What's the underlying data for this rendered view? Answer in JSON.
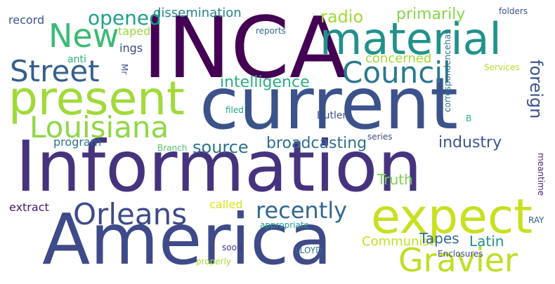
{
  "words": [
    {
      "text": "INCA",
      "color": "#440154"
    },
    {
      "text": "current",
      "color": "#3b528b"
    },
    {
      "text": "Information",
      "color": "#46337e"
    },
    {
      "text": "America",
      "color": "#3e4a89"
    },
    {
      "text": "material",
      "color": "#21918c"
    },
    {
      "text": "present",
      "color": "#a0da39"
    },
    {
      "text": "expect",
      "color": "#c8e020"
    },
    {
      "text": "Council",
      "color": "#2a788e"
    },
    {
      "text": "Street",
      "color": "#355f8d"
    },
    {
      "text": "New",
      "color": "#3bbb75"
    },
    {
      "text": "Louisiana",
      "color": "#90d743"
    },
    {
      "text": "Orleans",
      "color": "#3e4a89"
    },
    {
      "text": "Gravier",
      "color": "#bddf26"
    },
    {
      "text": "recently",
      "color": "#31688e"
    },
    {
      "text": "opened",
      "color": "#1fa187"
    },
    {
      "text": "foreign",
      "color": "#3b528b"
    },
    {
      "text": "intelligence",
      "color": "#2ab07f"
    },
    {
      "text": "broadcasting",
      "color": "#2e6e8e"
    },
    {
      "text": "source",
      "color": "#2c728e"
    },
    {
      "text": "industry",
      "color": "#39568c"
    },
    {
      "text": "radio",
      "color": "#a2da37"
    },
    {
      "text": "primarily",
      "color": "#86d549"
    },
    {
      "text": "dissemination",
      "color": "#25858e"
    },
    {
      "text": "concerned",
      "color": "#a0da39"
    },
    {
      "text": "Truth",
      "color": "#7ad151"
    },
    {
      "text": "Latin",
      "color": "#21918c"
    },
    {
      "text": "Communist",
      "color": "#c2df23"
    },
    {
      "text": "Tapes",
      "color": "#31688e"
    },
    {
      "text": "called",
      "color": "#dde318"
    },
    {
      "text": "program",
      "color": "#2c728e"
    },
    {
      "text": "taped",
      "color": "#99d83c"
    },
    {
      "text": "record",
      "color": "#3b528b"
    },
    {
      "text": "ings",
      "color": "#3e4a89"
    },
    {
      "text": "extract",
      "color": "#48186a"
    },
    {
      "text": "anti",
      "color": "#2ab07f"
    },
    {
      "text": "Butler",
      "color": "#3b528b"
    },
    {
      "text": "Branch",
      "color": "#52c569"
    },
    {
      "text": "filed",
      "color": "#1fa187"
    },
    {
      "text": "reports",
      "color": "#31688e"
    },
    {
      "text": "folders",
      "color": "#3b528b"
    },
    {
      "text": "Services",
      "color": "#b5de2b"
    },
    {
      "text": "correspondencehas",
      "color": "#2c728e"
    },
    {
      "text": "series",
      "color": "#3e4a89"
    },
    {
      "text": "meantime",
      "color": "#482576"
    },
    {
      "text": "appropriate",
      "color": "#1f9a8a"
    },
    {
      "text": "RAY",
      "color": "#355f8d"
    },
    {
      "text": "LLOYD",
      "color": "#2c728e"
    },
    {
      "text": "soon",
      "color": "#46337e"
    },
    {
      "text": "properly",
      "color": "#a8db34"
    },
    {
      "text": "Enclosures",
      "color": "#3e4a89"
    },
    {
      "text": "Mr",
      "color": "#3b528b"
    },
    {
      "text": "B",
      "color": "#2ab07f"
    }
  ]
}
